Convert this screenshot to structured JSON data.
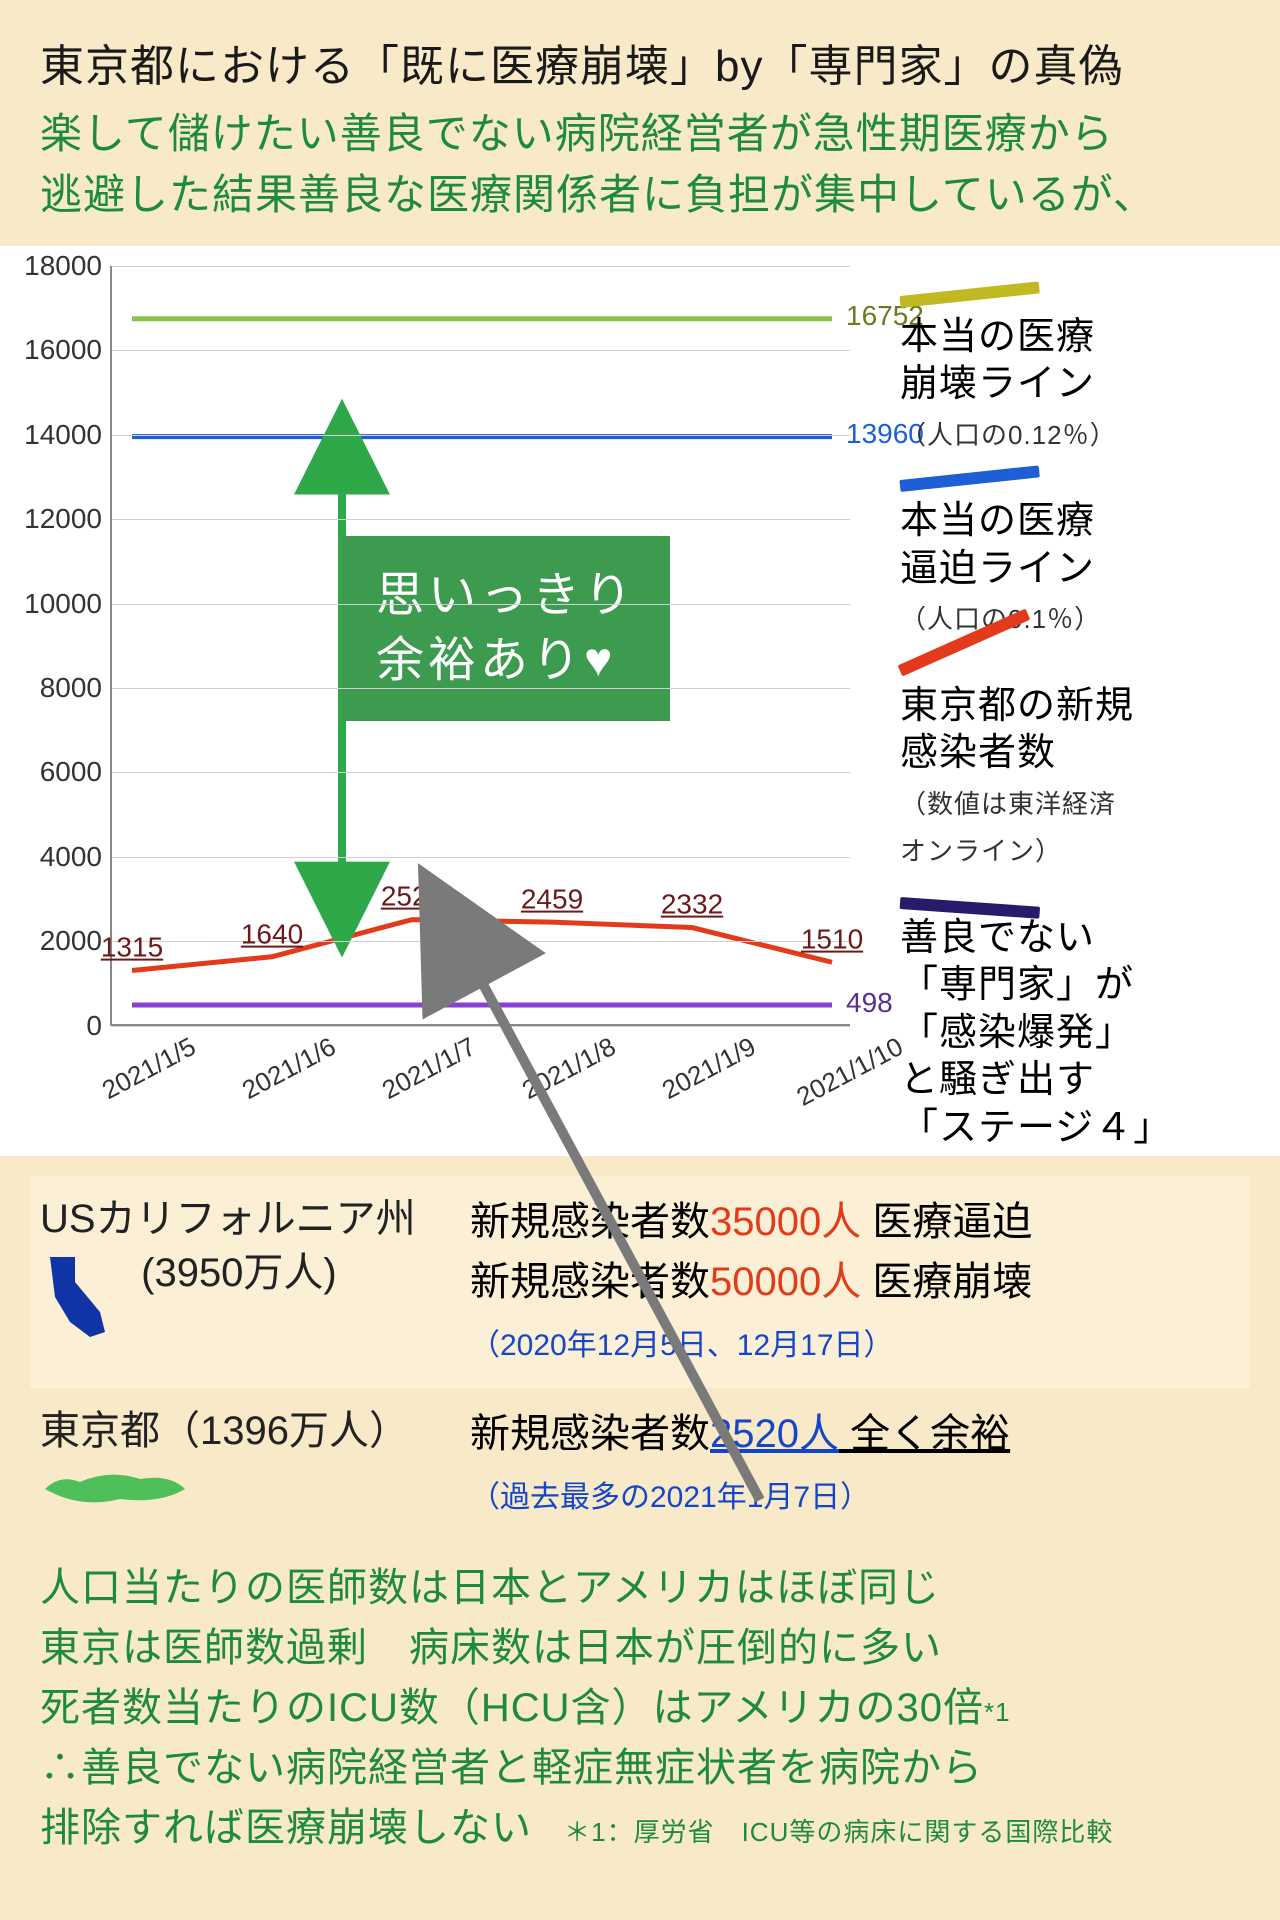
{
  "header": {
    "title": "東京都における「既に医療崩壊」by「専門家」の真偽",
    "subtitle1": "楽して儲けたい善良でない病院経営者が急性期医療から",
    "subtitle2": "逃避した結果善良な医療関係者に負担が集中しているが、"
  },
  "chart": {
    "type": "line",
    "ylim": [
      0,
      18000
    ],
    "ytick_step": 2000,
    "yticks": [
      0,
      2000,
      4000,
      6000,
      8000,
      10000,
      12000,
      14000,
      16000,
      18000
    ],
    "xlabels": [
      "2021/1/5",
      "2021/1/6",
      "2021/1/7",
      "2021/1/8",
      "2021/1/9",
      "2021/1/10"
    ],
    "series": {
      "collapse_line": {
        "values": [
          16752,
          16752,
          16752,
          16752,
          16752,
          16752
        ],
        "color": "#8bc34a",
        "end_label": "16752",
        "end_label_color": "#6a7b1f",
        "width": 5
      },
      "strain_line": {
        "values": [
          13960,
          13960,
          13960,
          13960,
          13960,
          13960
        ],
        "color": "#1e5fd6",
        "end_label": "13960",
        "end_label_color": "#1e5fd6",
        "width": 5
      },
      "tokyo_cases": {
        "values": [
          1315,
          1640,
          2520,
          2459,
          2332,
          1510
        ],
        "color": "#e33a1c",
        "width": 5
      },
      "stage4": {
        "values": [
          498,
          498,
          498,
          498,
          498,
          498
        ],
        "color": "#8a3fd1",
        "end_label": "498",
        "end_label_color": "#5a2e8f",
        "width": 5
      }
    },
    "point_labels": [
      {
        "x": 0,
        "v": 1315,
        "text": "1315"
      },
      {
        "x": 1,
        "v": 1640,
        "text": "1640"
      },
      {
        "x": 2,
        "v": 2520,
        "text": "2520"
      },
      {
        "x": 3,
        "v": 2459,
        "text": "2459"
      },
      {
        "x": 4,
        "v": 2332,
        "text": "2332"
      },
      {
        "x": 5,
        "v": 1510,
        "text": "1510"
      }
    ],
    "callout": {
      "line1": "思いっきり",
      "line2": "余裕あり♥"
    },
    "callout_bg": "#3d9b4f",
    "grid_color": "#d0d0d0",
    "axis_color": "#888888",
    "background_color": "#ffffff",
    "tick_fontsize": 28,
    "arrow_color": "#2fa84a"
  },
  "legend": {
    "collapse": {
      "bar_color": "#c0b921",
      "title": "本当の医療",
      "title2": "崩壊ライン",
      "sub": "（人口の0.12％）",
      "text_color": "#1a1a1a"
    },
    "strain": {
      "bar_color": "#1e5fd6",
      "title": "本当の医療",
      "title2": "逼迫ライン",
      "sub": "（人口の0.1％）",
      "text_color": "#1a1a1a"
    },
    "tokyo": {
      "bar_color": "#e33a1c",
      "title": "東京都の新規",
      "title2": "感染者数",
      "sub": "（数値は東洋経済",
      "sub2": "オンライン）",
      "text_color": "#1a1a1a"
    },
    "stage4": {
      "bar_color": "#2a1a6b",
      "title": "善良でない",
      "l2": "「専門家」が",
      "l3": "「感染爆発」",
      "l4": "と騒ぎ出す",
      "l5": "「ステージ４」",
      "text_color": "#1a1a1a"
    }
  },
  "compare": {
    "california": {
      "name": "USカリフォルニア州",
      "pop": "(3950万人)",
      "map_color": "#1034a6",
      "r1_prefix": "新規感染者数",
      "r1_num": "35000人",
      "r1_suffix": " 医療逼迫",
      "r2_prefix": "新規感染者数",
      "r2_num": "50000人",
      "r2_suffix": " 医療崩壊",
      "note": "（2020年12月5日、12月17日）"
    },
    "tokyo": {
      "name": "東京都（1396万人）",
      "map_color": "#4fbf5a",
      "r1_prefix": "新規感染者数",
      "r1_num": "2520人",
      "r1_suffix": " 全く余裕",
      "note": "（過去最多の2021年1月7日）"
    }
  },
  "footer": {
    "l1": "人口当たりの医師数は日本とアメリカはほぼ同じ",
    "l2": "東京は医師数過剰　病床数は日本が圧倒的に多い",
    "l3": "死者数当たりのICU数（HCU含）はアメリカの30倍",
    "l3_mark": "*1",
    "l4": "∴善良でない病院経営者と軽症無症状者を病院から",
    "l5_a": "排除すれば医療崩壊しない",
    "l5_note": "＊1：厚労省　ICU等の病床に関する国際比較"
  },
  "big_arrow_color": "#7a7a7a"
}
